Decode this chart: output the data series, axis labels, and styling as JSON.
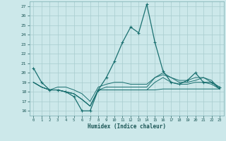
{
  "xlabel": "Humidex (Indice chaleur)",
  "xlim": [
    -0.5,
    23.5
  ],
  "ylim": [
    15.5,
    27.5
  ],
  "yticks": [
    16,
    17,
    18,
    19,
    20,
    21,
    22,
    23,
    24,
    25,
    26,
    27
  ],
  "xticks": [
    0,
    1,
    2,
    3,
    4,
    5,
    6,
    7,
    8,
    9,
    10,
    11,
    12,
    13,
    14,
    15,
    16,
    17,
    18,
    19,
    20,
    21,
    22,
    23
  ],
  "bg_color": "#cce8ea",
  "grid_color": "#a8ccce",
  "line_color": "#1a7070",
  "lines": [
    [
      20.5,
      19.0,
      18.2,
      18.2,
      18.0,
      17.5,
      16.0,
      16.0,
      18.2,
      19.5,
      21.2,
      23.2,
      24.8,
      24.2,
      27.2,
      23.2,
      20.2,
      19.0,
      18.8,
      19.2,
      20.0,
      19.0,
      19.0,
      18.5
    ],
    [
      19.0,
      18.5,
      18.2,
      18.2,
      18.0,
      17.8,
      17.2,
      16.5,
      18.2,
      18.2,
      18.2,
      18.2,
      18.2,
      18.2,
      18.2,
      18.2,
      18.3,
      18.3,
      18.3,
      18.3,
      18.3,
      18.3,
      18.3,
      18.3
    ],
    [
      19.0,
      18.5,
      18.2,
      18.2,
      18.0,
      17.8,
      17.2,
      16.5,
      18.2,
      18.2,
      18.2,
      18.2,
      18.2,
      18.2,
      18.2,
      19.0,
      19.5,
      19.0,
      18.8,
      18.8,
      19.0,
      19.0,
      18.8,
      18.3
    ],
    [
      19.0,
      18.5,
      18.2,
      18.2,
      18.0,
      17.8,
      17.2,
      16.5,
      18.2,
      18.5,
      18.5,
      18.5,
      18.5,
      18.5,
      18.5,
      19.5,
      20.0,
      19.5,
      19.0,
      19.0,
      19.2,
      19.5,
      19.0,
      18.3
    ],
    [
      19.0,
      18.5,
      18.2,
      18.5,
      18.5,
      18.2,
      17.8,
      17.0,
      18.5,
      18.8,
      19.0,
      19.0,
      18.8,
      18.8,
      18.8,
      19.5,
      19.8,
      19.5,
      19.2,
      19.2,
      19.5,
      19.5,
      19.2,
      18.3
    ]
  ]
}
